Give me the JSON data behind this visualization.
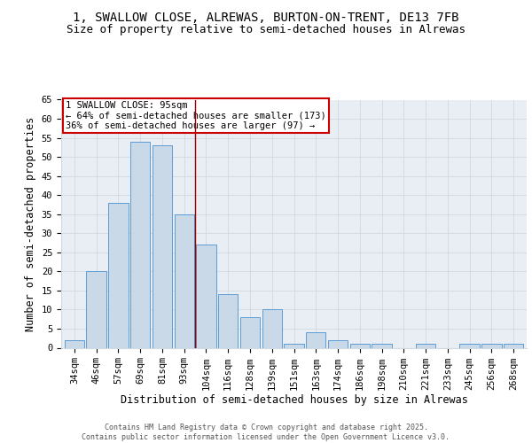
{
  "title_line1": "1, SWALLOW CLOSE, ALREWAS, BURTON-ON-TRENT, DE13 7FB",
  "title_line2": "Size of property relative to semi-detached houses in Alrewas",
  "xlabel": "Distribution of semi-detached houses by size in Alrewas",
  "ylabel": "Number of semi-detached properties",
  "categories": [
    "34sqm",
    "46sqm",
    "57sqm",
    "69sqm",
    "81sqm",
    "93sqm",
    "104sqm",
    "116sqm",
    "128sqm",
    "139sqm",
    "151sqm",
    "163sqm",
    "174sqm",
    "186sqm",
    "198sqm",
    "210sqm",
    "221sqm",
    "233sqm",
    "245sqm",
    "256sqm",
    "268sqm"
  ],
  "values": [
    2,
    20,
    38,
    54,
    53,
    35,
    27,
    14,
    8,
    10,
    1,
    4,
    2,
    1,
    1,
    0,
    1,
    0,
    1,
    1,
    1
  ],
  "bar_color": "#c9d9e8",
  "bar_edge_color": "#5b9bd5",
  "grid_color": "#d0d8e0",
  "bg_color": "#e8eef4",
  "vline_x": 5.5,
  "vline_color": "#990000",
  "annotation_title": "1 SWALLOW CLOSE: 95sqm",
  "annotation_line2": "← 64% of semi-detached houses are smaller (173)",
  "annotation_line3": "36% of semi-detached houses are larger (97) →",
  "annotation_box_color": "#cc0000",
  "ylim": [
    0,
    65
  ],
  "yticks": [
    0,
    5,
    10,
    15,
    20,
    25,
    30,
    35,
    40,
    45,
    50,
    55,
    60,
    65
  ],
  "footnote1": "Contains HM Land Registry data © Crown copyright and database right 2025.",
  "footnote2": "Contains public sector information licensed under the Open Government Licence v3.0.",
  "title_fontsize": 10,
  "subtitle_fontsize": 9,
  "axis_label_fontsize": 8.5,
  "tick_fontsize": 7.5,
  "annotation_fontsize": 7.5,
  "footnote_fontsize": 6
}
